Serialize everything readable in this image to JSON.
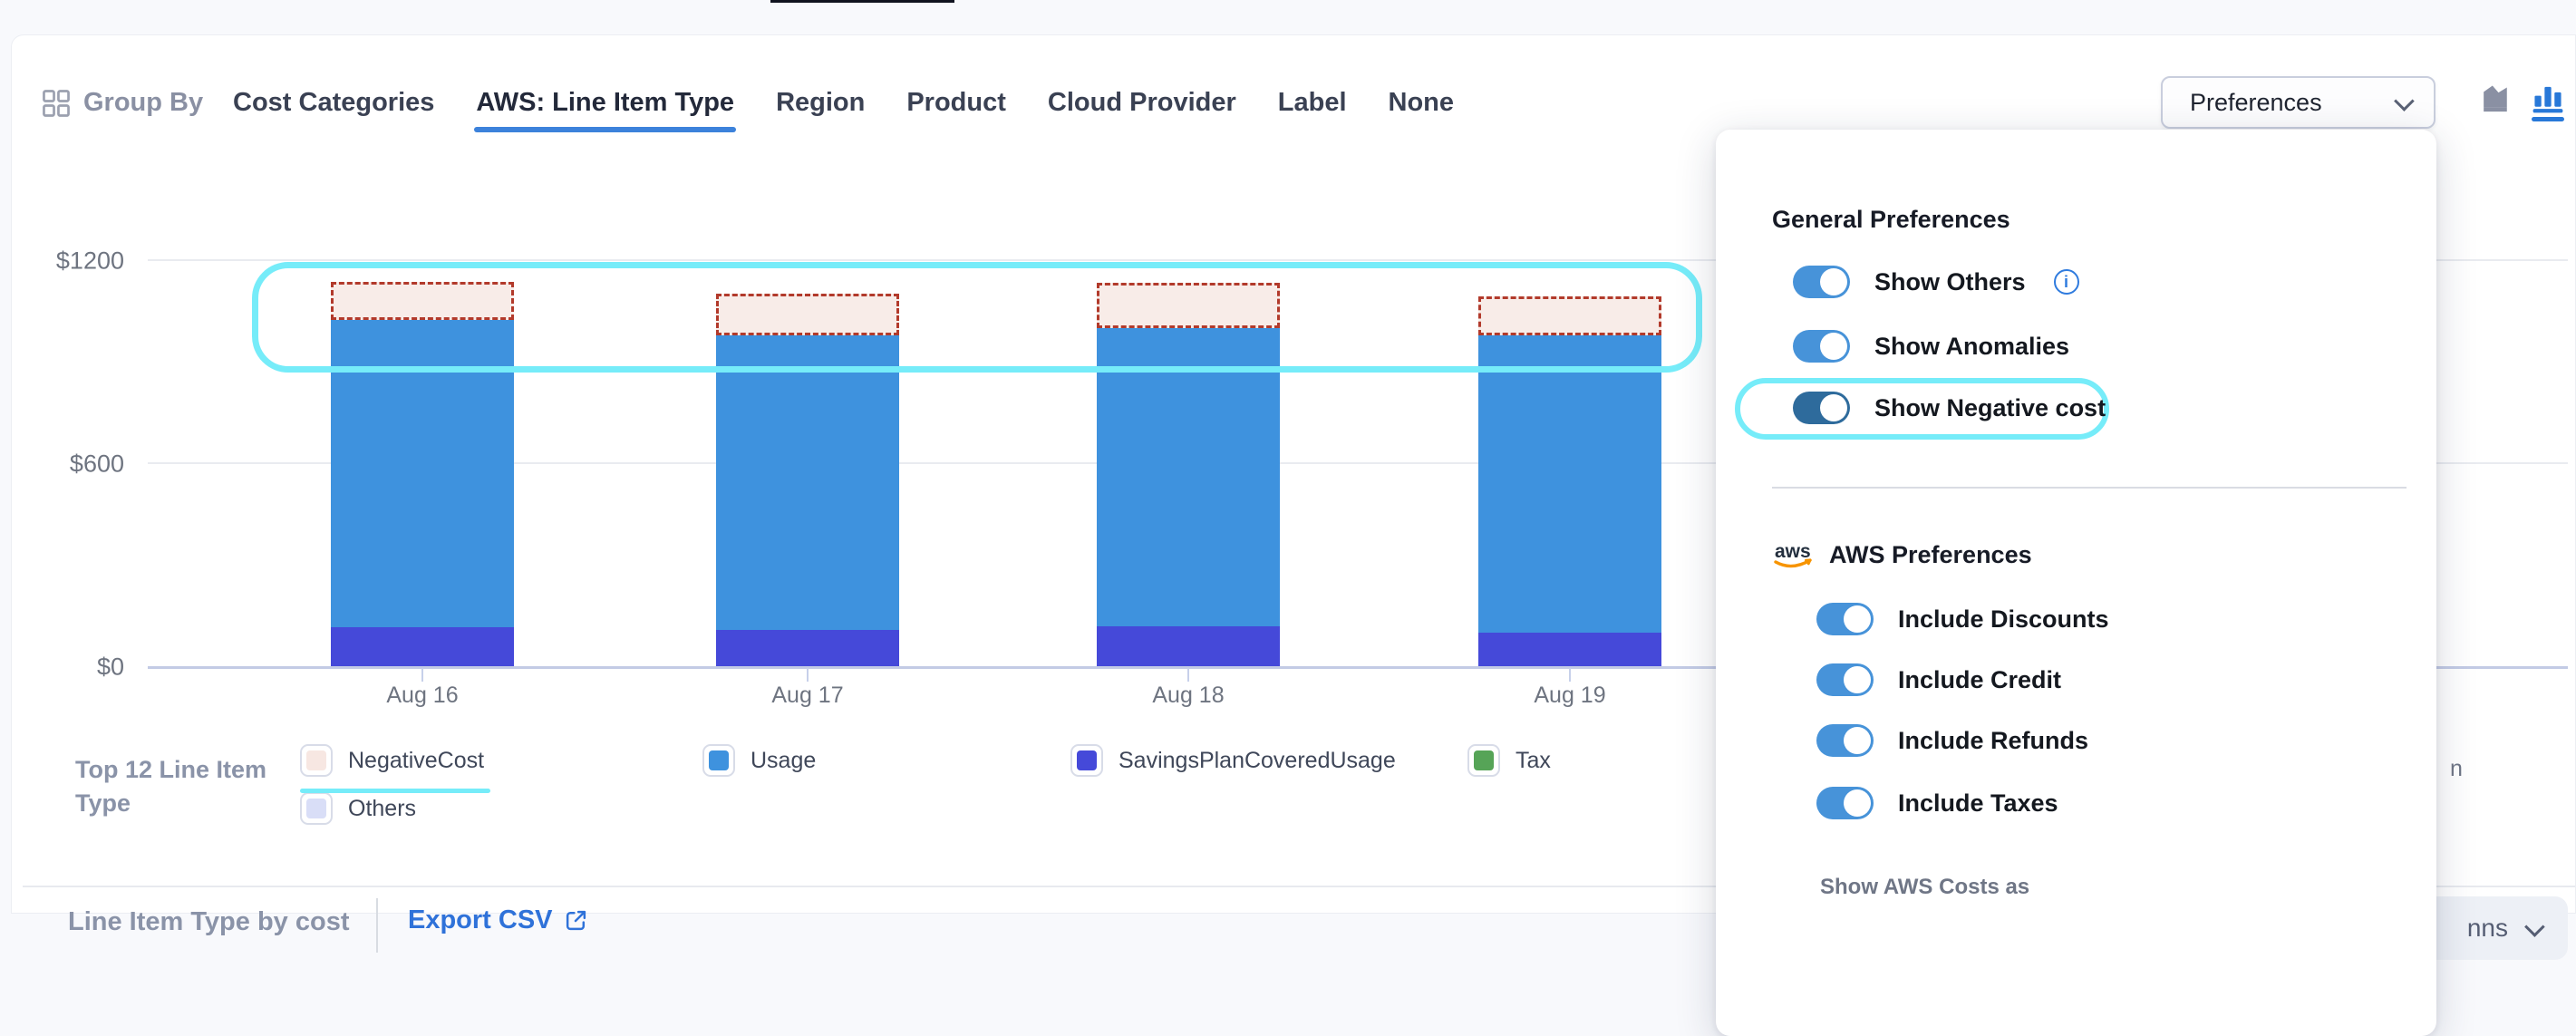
{
  "toolbar": {
    "group_by_label": "Group By",
    "tabs": [
      {
        "label": "Cost Categories",
        "active": false
      },
      {
        "label": "AWS: Line Item Type",
        "active": true
      },
      {
        "label": "Region",
        "active": false
      },
      {
        "label": "Product",
        "active": false
      },
      {
        "label": "Cloud Provider",
        "active": false
      },
      {
        "label": "Label",
        "active": false
      },
      {
        "label": "None",
        "active": false
      }
    ],
    "preferences_label": "Preferences",
    "chart_type_icons": [
      "area-chart-icon",
      "bar-chart-icon"
    ],
    "active_chart_type": "bar"
  },
  "chart_data": {
    "type": "bar",
    "stacked": true,
    "title": "",
    "categories": [
      "Aug 16",
      "Aug 17",
      "Aug 18",
      "Aug 19"
    ],
    "series": [
      {
        "name": "SavingsPlanCoveredUsage",
        "color": "#4549D9",
        "values": [
          115,
          107,
          118,
          99
        ]
      },
      {
        "name": "Usage",
        "color": "#3E92DE",
        "values": [
          908,
          871,
          881,
          879
        ]
      },
      {
        "name": "NegativeCost",
        "color": "#F8ECE8",
        "border_color": "#B23A2B",
        "style": "dashed-outline",
        "values": [
          113,
          123,
          134,
          115
        ]
      }
    ],
    "y_axis": {
      "tick_values": [
        0,
        600,
        1200
      ],
      "tick_labels": [
        "$0",
        "$600",
        "$1200"
      ],
      "ylim": [
        0,
        1200
      ]
    },
    "grid": true,
    "annotations": [
      {
        "type": "highlight-rect",
        "color": "#76ECF9",
        "note": "cyan outline around negative-cost caps of all bars"
      }
    ]
  },
  "legend": {
    "title": "Top 12 Line Item Type",
    "items": [
      {
        "label": "NegativeCost",
        "swatch_color": "#F7E7E2",
        "highlighted": true
      },
      {
        "label": "Usage",
        "swatch_color": "#3E92DE",
        "highlighted": false
      },
      {
        "label": "SavingsPlanCoveredUsage",
        "swatch_color": "#4549D9",
        "highlighted": false
      },
      {
        "label": "Tax",
        "swatch_color": "#56A457",
        "highlighted": false
      },
      {
        "label": "Others",
        "swatch_color": "#D9DEF7",
        "highlighted": false
      }
    ]
  },
  "panel": {
    "general": {
      "title": "General Preferences",
      "toggles": [
        {
          "label": "Show Others",
          "on": true,
          "info": true,
          "dark": false,
          "highlighted": false
        },
        {
          "label": "Show Anomalies",
          "on": true,
          "info": false,
          "dark": false,
          "highlighted": false
        },
        {
          "label": "Show Negative cost",
          "on": true,
          "info": false,
          "dark": true,
          "highlighted": true
        }
      ]
    },
    "aws": {
      "title": "AWS Preferences",
      "logo_text": "aws",
      "toggles": [
        {
          "label": "Include Discounts",
          "on": true
        },
        {
          "label": "Include Credit",
          "on": true
        },
        {
          "label": "Include Refunds",
          "on": true
        },
        {
          "label": "Include Taxes",
          "on": true
        }
      ]
    },
    "show_costs_label": "Show AWS Costs as"
  },
  "footer": {
    "title": "Line Item Type by cost",
    "export_label": "Export CSV"
  },
  "background_partials": {
    "legend_tail": "n",
    "columns_button_text": "nns"
  },
  "icons": {
    "info_glyph": "i"
  },
  "colors": {
    "accent_cyan": "#76ECF9",
    "toggle_blue": "#4793D9",
    "toggle_dark_blue": "#2E6B9C",
    "active_tab_underline": "#3C82DB",
    "export_link_blue": "#2F72D9",
    "bar_blue": "#3E92DE",
    "bar_purple": "#4549D9",
    "negative_fill": "#F8ECE8",
    "negative_border": "#B23A2B"
  }
}
